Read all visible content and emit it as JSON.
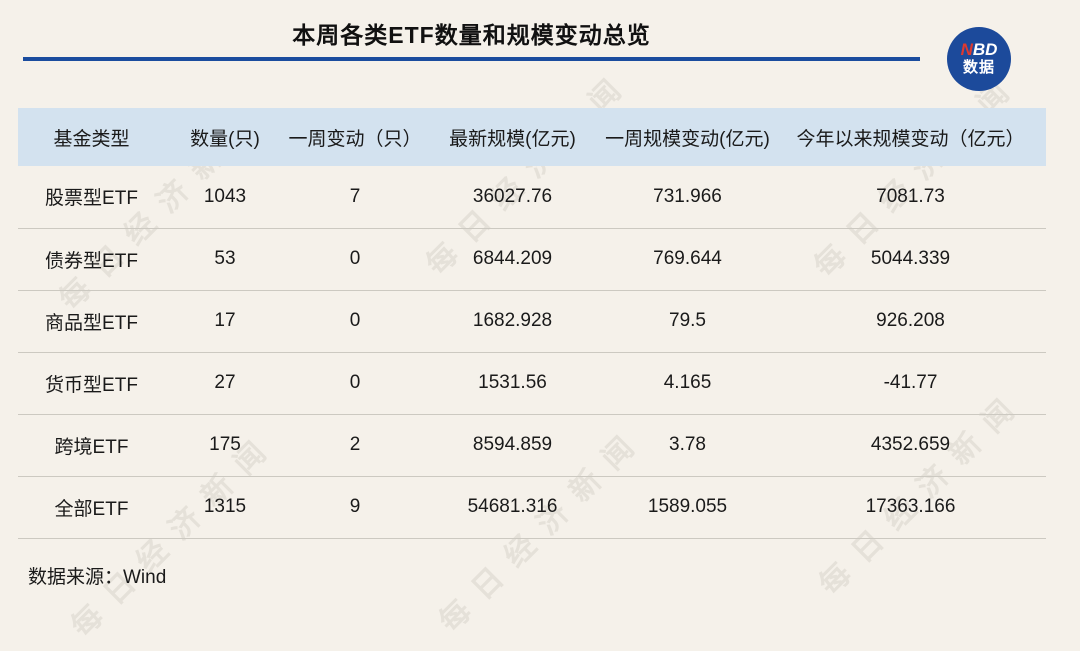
{
  "title": "本周各类ETF数量和规模变动总览",
  "logo": {
    "nbd_n": "N",
    "nbd_bd": "BD",
    "subtitle": "数据",
    "circle_color": "#1c4a9b",
    "n_color": "#e0392e"
  },
  "chart_data": {
    "type": "table",
    "title": "本周各类ETF数量和规模变动总览",
    "columns": [
      "基金类型",
      "数量(只)",
      "一周变动（只）",
      "最新规模(亿元)",
      "一周规模变动(亿元)",
      "今年以来规模变动（亿元）"
    ],
    "rows": [
      [
        "股票型ETF",
        "1043",
        "7",
        "36027.76",
        "731.966",
        "7081.73"
      ],
      [
        "债券型ETF",
        "53",
        "0",
        "6844.209",
        "769.644",
        "5044.339"
      ],
      [
        "商品型ETF",
        "17",
        "0",
        "1682.928",
        "79.5",
        "926.208"
      ],
      [
        "货币型ETF",
        "27",
        "0",
        "1531.56",
        "4.165",
        "-41.77"
      ],
      [
        "跨境ETF",
        "175",
        "2",
        "8594.859",
        "3.78",
        "4352.659"
      ],
      [
        "全部ETF",
        "1315",
        "9",
        "54681.316",
        "1589.055",
        "17363.166"
      ]
    ],
    "source": "数据来源：Wind"
  },
  "source": "数据来源：Wind",
  "watermark": {
    "text": "每日经济新闻"
  },
  "colors": {
    "background": "#f5f1ea",
    "header_band": "#d3e2ef",
    "accent_blue": "#1a4c9e",
    "logo_blue": "#1c4a9b",
    "logo_red": "#e0392e",
    "row_divider": "#ccc9c1",
    "text": "#1a1a1a"
  }
}
